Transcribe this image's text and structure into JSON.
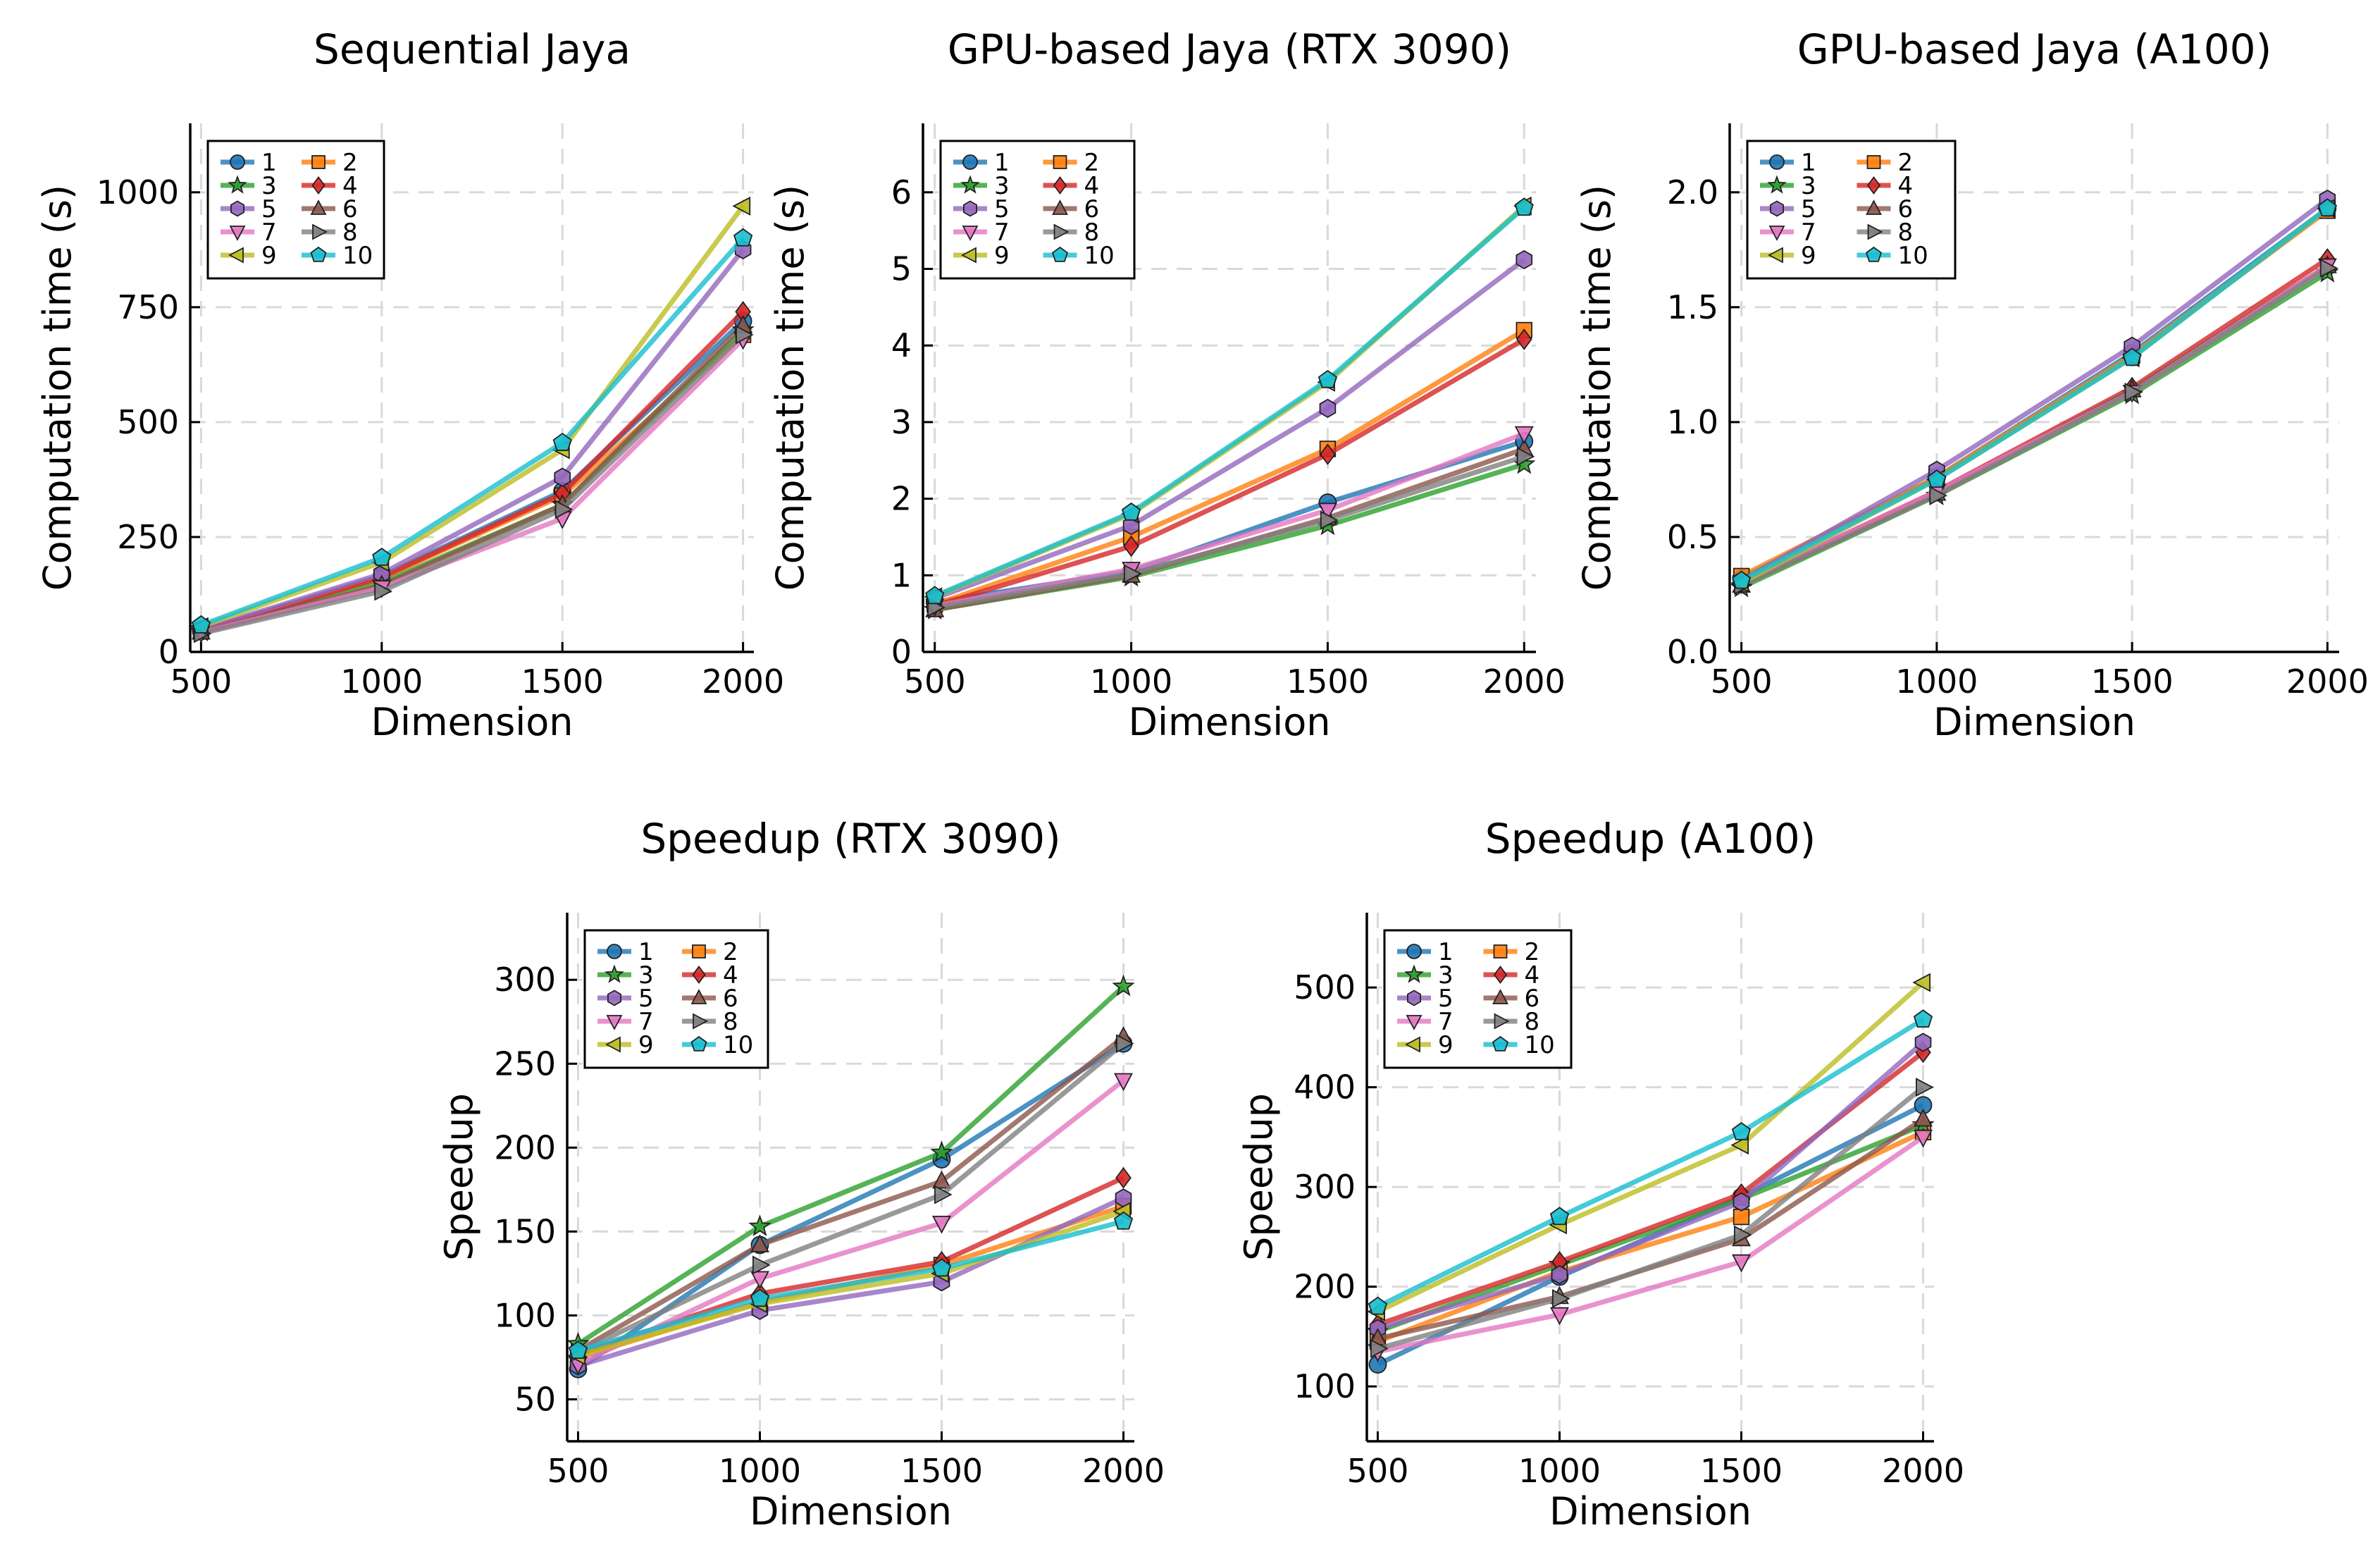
{
  "chart_data": [
    {
      "type": "line",
      "title": "Sequential Jaya",
      "xlabel": "Dimension",
      "ylabel": "Computation time (s)",
      "x": [
        500,
        1000,
        1500,
        2000
      ],
      "xlim": [
        470,
        2030
      ],
      "ylim": [
        0,
        1150
      ],
      "xticks": [
        "500",
        "1000",
        "1500",
        "2000"
      ],
      "yticks": [
        0,
        250,
        500,
        750,
        1000
      ],
      "ytick_labels": [
        "0",
        "250",
        "500",
        "750",
        "1000"
      ],
      "grid": true,
      "legend": "top-left",
      "series": [
        {
          "name": "1",
          "values": [
            45,
            165,
            350,
            720
          ]
        },
        {
          "name": "2",
          "values": [
            47,
            160,
            340,
            690
          ]
        },
        {
          "name": "3",
          "values": [
            44,
            150,
            320,
            700
          ]
        },
        {
          "name": "4",
          "values": [
            46,
            162,
            345,
            740
          ]
        },
        {
          "name": "5",
          "values": [
            48,
            170,
            380,
            875
          ]
        },
        {
          "name": "6",
          "values": [
            43,
            145,
            320,
            710
          ]
        },
        {
          "name": "7",
          "values": [
            42,
            140,
            290,
            680
          ]
        },
        {
          "name": "8",
          "values": [
            40,
            132,
            310,
            690
          ]
        },
        {
          "name": "9",
          "values": [
            55,
            195,
            440,
            970
          ]
        },
        {
          "name": "10",
          "values": [
            58,
            205,
            455,
            900
          ]
        }
      ]
    },
    {
      "type": "line",
      "title": "GPU-based Jaya (RTX 3090)",
      "xlabel": "Dimension",
      "ylabel": "Computation time (s)",
      "x": [
        500,
        1000,
        1500,
        2000
      ],
      "xlim": [
        470,
        2030
      ],
      "ylim": [
        0,
        6.9
      ],
      "xticks": [
        "500",
        "1000",
        "1500",
        "2000"
      ],
      "yticks": [
        0,
        1,
        2,
        3,
        4,
        5,
        6
      ],
      "ytick_labels": [
        "0",
        "1",
        "2",
        "3",
        "4",
        "5",
        "6"
      ],
      "grid": true,
      "legend": "top-left",
      "series": [
        {
          "name": "1",
          "values": [
            0.65,
            1.05,
            1.95,
            2.75
          ]
        },
        {
          "name": "2",
          "values": [
            0.62,
            1.5,
            2.65,
            4.2
          ]
        },
        {
          "name": "3",
          "values": [
            0.55,
            0.98,
            1.65,
            2.45
          ]
        },
        {
          "name": "4",
          "values": [
            0.6,
            1.38,
            2.58,
            4.08
          ]
        },
        {
          "name": "5",
          "values": [
            0.7,
            1.65,
            3.18,
            5.12
          ]
        },
        {
          "name": "6",
          "values": [
            0.55,
            1.0,
            1.75,
            2.65
          ]
        },
        {
          "name": "7",
          "values": [
            0.6,
            1.08,
            1.85,
            2.85
          ]
        },
        {
          "name": "8",
          "values": [
            0.58,
            1.02,
            1.72,
            2.55
          ]
        },
        {
          "name": "9",
          "values": [
            0.72,
            1.8,
            3.52,
            5.82
          ]
        },
        {
          "name": "10",
          "values": [
            0.73,
            1.82,
            3.55,
            5.8
          ]
        }
      ]
    },
    {
      "type": "line",
      "title": "GPU-based Jaya (A100)",
      "xlabel": "Dimension",
      "ylabel": "Computation time (s)",
      "x": [
        500,
        1000,
        1500,
        2000
      ],
      "xlim": [
        470,
        2030
      ],
      "ylim": [
        0,
        2.3
      ],
      "xticks": [
        "500",
        "1000",
        "1500",
        "2000"
      ],
      "yticks": [
        0,
        0.5,
        1.0,
        1.5,
        2.0
      ],
      "ytick_labels": [
        "0.0",
        "0.5",
        "1.0",
        "1.5",
        "2.0"
      ],
      "grid": true,
      "legend": "top-left",
      "series": [
        {
          "name": "1",
          "values": [
            0.32,
            0.76,
            1.3,
            1.93
          ]
        },
        {
          "name": "2",
          "values": [
            0.33,
            0.76,
            1.29,
            1.92
          ]
        },
        {
          "name": "3",
          "values": [
            0.28,
            0.68,
            1.12,
            1.65
          ]
        },
        {
          "name": "4",
          "values": [
            0.3,
            0.7,
            1.15,
            1.71
          ]
        },
        {
          "name": "5",
          "values": [
            0.31,
            0.79,
            1.33,
            1.97
          ]
        },
        {
          "name": "6",
          "values": [
            0.29,
            0.69,
            1.14,
            1.68
          ]
        },
        {
          "name": "7",
          "values": [
            0.3,
            0.7,
            1.13,
            1.68
          ]
        },
        {
          "name": "8",
          "values": [
            0.29,
            0.68,
            1.13,
            1.67
          ]
        },
        {
          "name": "9",
          "values": [
            0.3,
            0.75,
            1.28,
            1.93
          ]
        },
        {
          "name": "10",
          "values": [
            0.31,
            0.75,
            1.28,
            1.93
          ]
        }
      ]
    },
    {
      "type": "line",
      "title": "Speedup (RTX 3090)",
      "xlabel": "Dimension",
      "ylabel": "Speedup",
      "x": [
        500,
        1000,
        1500,
        2000
      ],
      "xlim": [
        470,
        2030
      ],
      "ylim": [
        25,
        340
      ],
      "xticks": [
        "500",
        "1000",
        "1500",
        "2000"
      ],
      "yticks": [
        50,
        100,
        150,
        200,
        250,
        300
      ],
      "ytick_labels": [
        "50",
        "100",
        "150",
        "200",
        "250",
        "300"
      ],
      "grid": true,
      "legend": "top-left",
      "series": [
        {
          "name": "1",
          "values": [
            68,
            142,
            193,
            262
          ]
        },
        {
          "name": "2",
          "values": [
            75,
            108,
            130,
            165
          ]
        },
        {
          "name": "3",
          "values": [
            83,
            153,
            197,
            296
          ]
        },
        {
          "name": "4",
          "values": [
            77,
            113,
            132,
            182
          ]
        },
        {
          "name": "5",
          "values": [
            70,
            103,
            120,
            170
          ]
        },
        {
          "name": "6",
          "values": [
            79,
            142,
            180,
            266
          ]
        },
        {
          "name": "7",
          "values": [
            71,
            122,
            155,
            240
          ]
        },
        {
          "name": "8",
          "values": [
            78,
            130,
            172,
            262
          ]
        },
        {
          "name": "9",
          "values": [
            76,
            107,
            125,
            162
          ]
        },
        {
          "name": "10",
          "values": [
            79,
            110,
            128,
            156
          ]
        }
      ]
    },
    {
      "type": "line",
      "title": "Speedup (A100)",
      "xlabel": "Dimension",
      "ylabel": "Speedup",
      "x": [
        500,
        1000,
        1500,
        2000
      ],
      "xlim": [
        470,
        2030
      ],
      "ylim": [
        45,
        575
      ],
      "xticks": [
        "500",
        "1000",
        "1500",
        "2000"
      ],
      "yticks": [
        100,
        200,
        300,
        400,
        500
      ],
      "ytick_labels": [
        "100",
        "200",
        "300",
        "400",
        "500"
      ],
      "grid": true,
      "legend": "top-left",
      "series": [
        {
          "name": "1",
          "values": [
            122,
            210,
            290,
            382
          ]
        },
        {
          "name": "2",
          "values": [
            145,
            215,
            270,
            355
          ]
        },
        {
          "name": "3",
          "values": [
            155,
            222,
            288,
            362
          ]
        },
        {
          "name": "4",
          "values": [
            162,
            225,
            293,
            435
          ]
        },
        {
          "name": "5",
          "values": [
            158,
            212,
            285,
            445
          ]
        },
        {
          "name": "6",
          "values": [
            148,
            190,
            248,
            368
          ]
        },
        {
          "name": "7",
          "values": [
            135,
            172,
            225,
            350
          ]
        },
        {
          "name": "8",
          "values": [
            138,
            188,
            252,
            400
          ]
        },
        {
          "name": "9",
          "values": [
            175,
            262,
            342,
            505
          ]
        },
        {
          "name": "10",
          "values": [
            180,
            270,
            355,
            468
          ]
        }
      ]
    }
  ],
  "style": {
    "series_colors": [
      "#1f77b4",
      "#ff7f0e",
      "#2ca02c",
      "#d62728",
      "#9467bd",
      "#8c564b",
      "#e377c2",
      "#7f7f7f",
      "#bcbd22",
      "#17becf"
    ],
    "series_markers": [
      "circle",
      "square",
      "star",
      "diamond",
      "hexagon",
      "triangle-up",
      "triangle-down",
      "triangle-right",
      "triangle-left",
      "pentagon"
    ]
  }
}
